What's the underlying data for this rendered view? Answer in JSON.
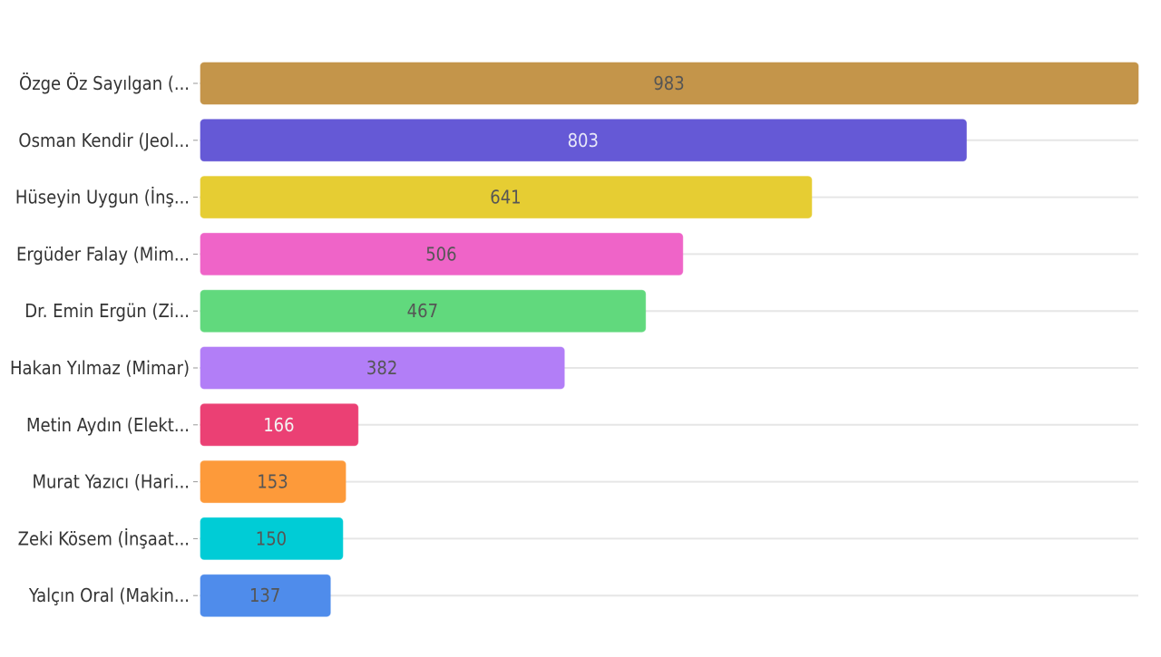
{
  "chart_data": {
    "type": "bar",
    "orientation": "horizontal",
    "title": "",
    "xlabel": "",
    "ylabel": "",
    "xlim": [
      0,
      983
    ],
    "grid": true,
    "legend": "none",
    "categories": [
      "Özge Öz Sayılgan (...",
      "Osman Kendir (Jeol...",
      "Hüseyin Uygun (İnş...",
      "Ergüder Falay (Mim...",
      "Dr. Emin Ergün (Zi...",
      "Hakan Yılmaz (Mimar)",
      "Metin Aydın (Elekt...",
      "Murat Yazıcı (Hari...",
      "Zeki Kösem (İnşaat...",
      "Yalçın Oral (Makin..."
    ],
    "values": [
      983,
      803,
      641,
      506,
      467,
      382,
      166,
      153,
      150,
      137
    ],
    "bar_labels": [
      "983",
      "803",
      "641",
      "506",
      "467",
      "382",
      "166",
      "153",
      "150",
      "137"
    ],
    "colors": [
      "#c4954a",
      "#6559d6",
      "#e6cd33",
      "#ef64c8",
      "#61d97d",
      "#b27ef7",
      "#eb4074",
      "#fd9a3a",
      "#00ccd6",
      "#4f8ceb"
    ],
    "label_colors": [
      "#555555",
      "#e8e8f8",
      "#555555",
      "#555555",
      "#555555",
      "#555555",
      "#f3f3f3",
      "#555555",
      "#555555",
      "#555555"
    ]
  }
}
